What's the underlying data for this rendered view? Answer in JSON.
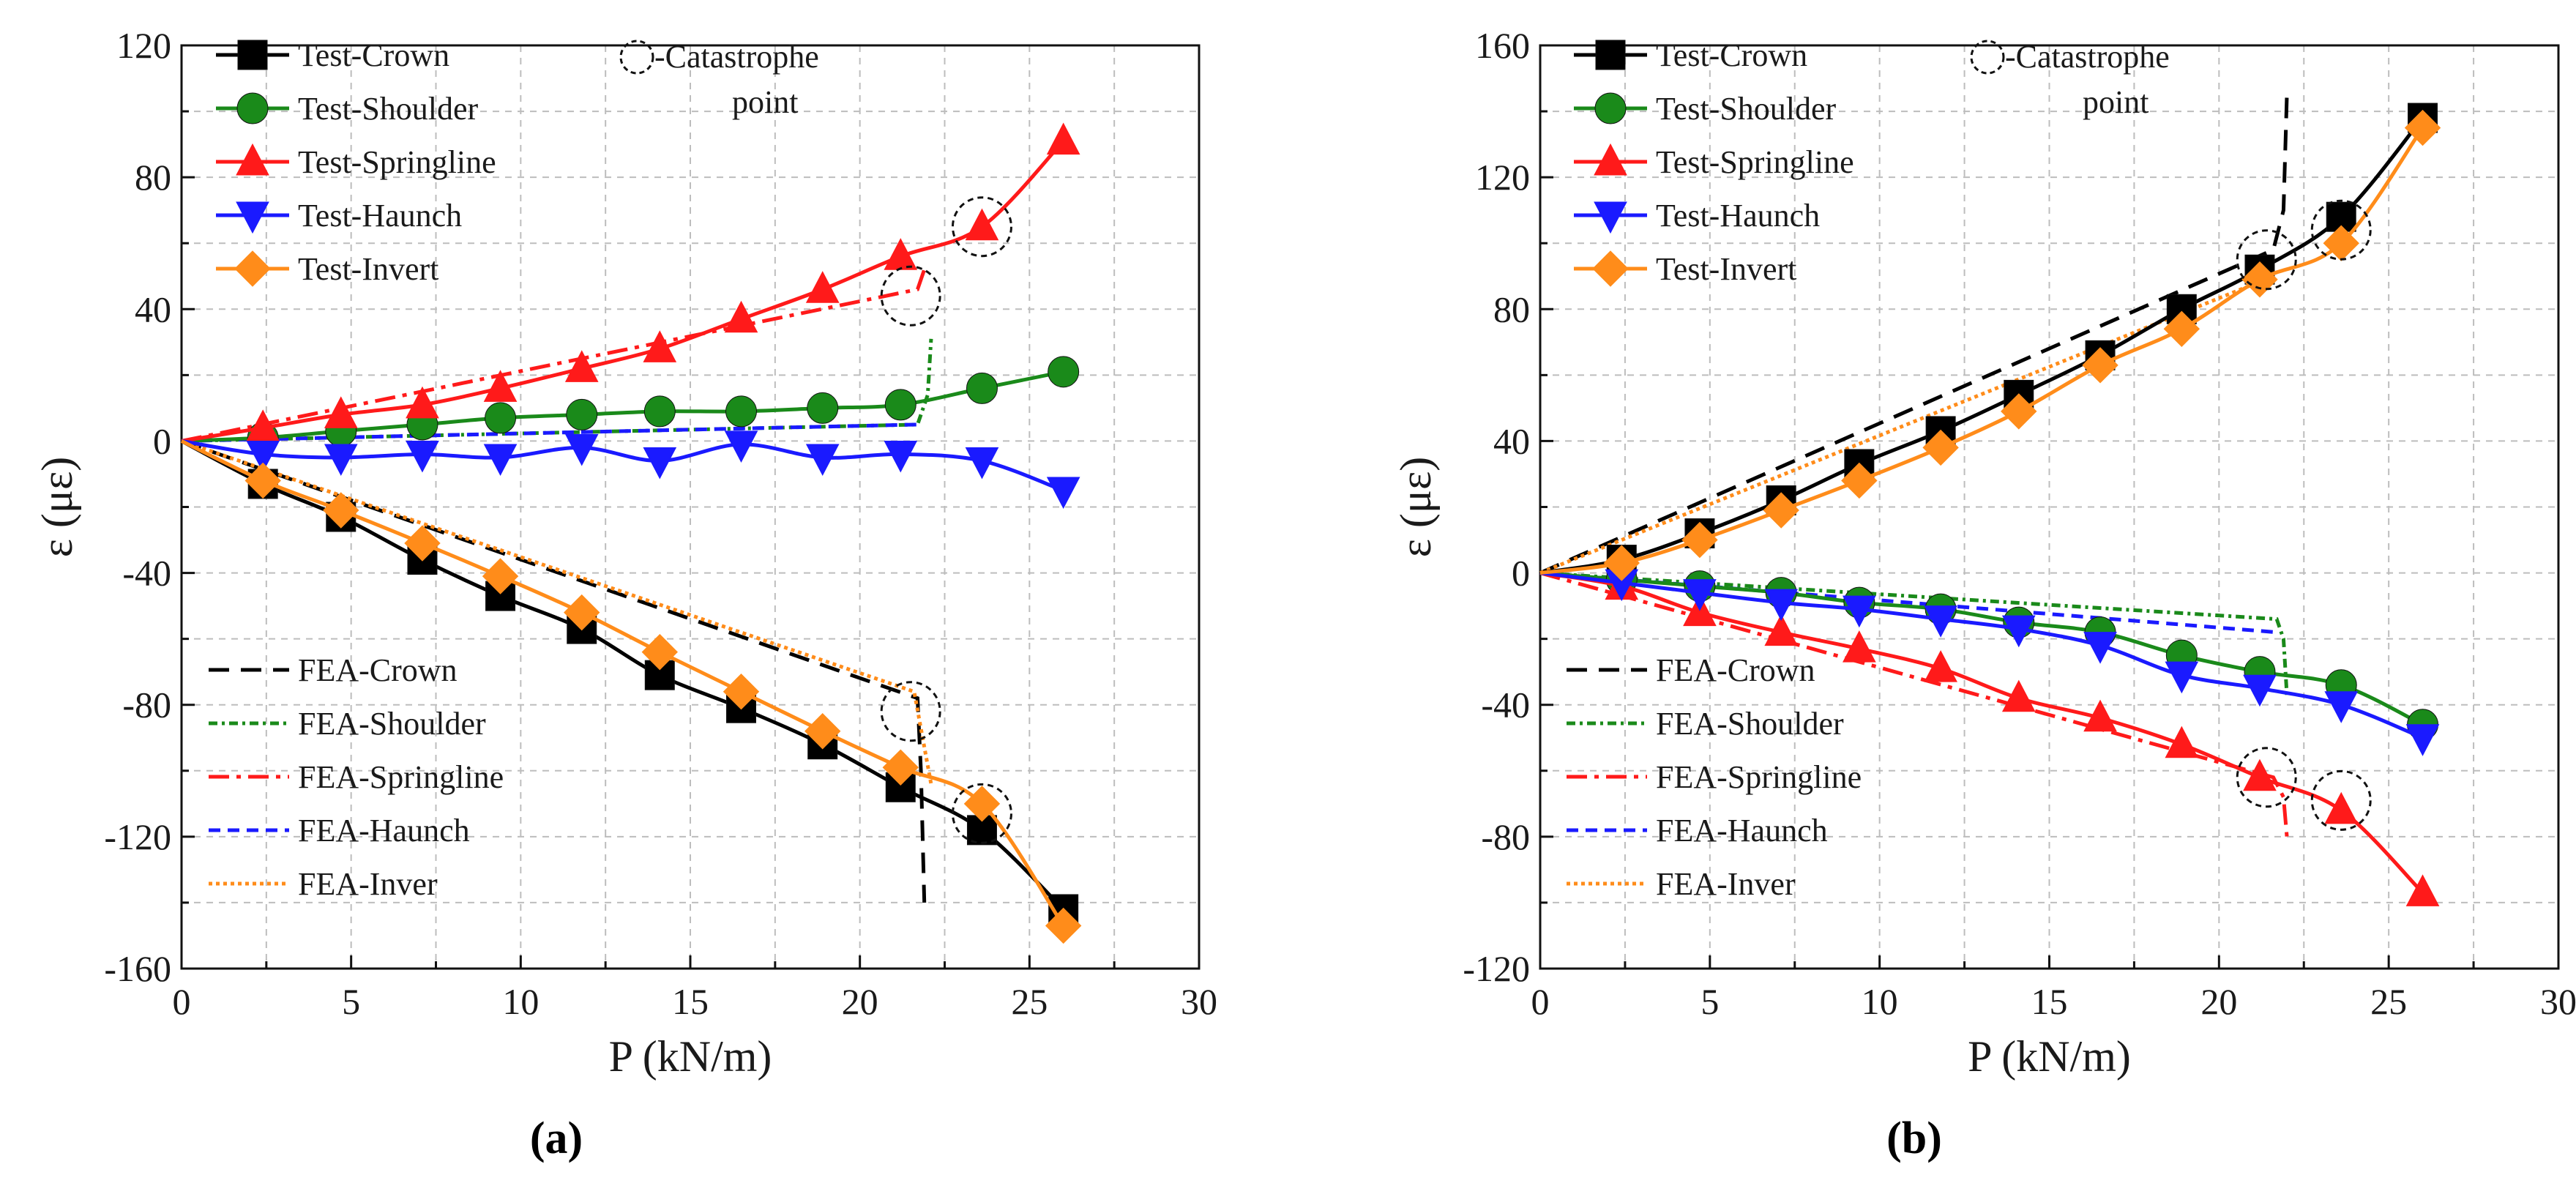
{
  "figure_labels": [
    "(a)",
    "(b)"
  ],
  "chart_data": [
    {
      "type": "line",
      "panel_label": "(a)",
      "title": "",
      "xlabel": "P (kN/m)",
      "ylabel": "ε (με)",
      "xlim": [
        0,
        30
      ],
      "ylim": [
        -160,
        120
      ],
      "xticks": [
        0,
        5,
        10,
        15,
        20,
        25,
        30
      ],
      "yticks": [
        -160,
        -120,
        -80,
        -40,
        0,
        40,
        80,
        120
      ],
      "grid": true,
      "annotation": {
        "text_line1": "-Catastrophe",
        "text_line2": "point",
        "x": 22.3,
        "y": 115
      },
      "catastrophe_points": [
        {
          "x": 23.6,
          "y": 65
        },
        {
          "x": 21.5,
          "y": 44
        },
        {
          "x": 21.5,
          "y": -82
        },
        {
          "x": 23.6,
          "y": -113
        }
      ],
      "series": [
        {
          "name": "Test-Crown",
          "kind": "test",
          "color": "#000000",
          "marker": "square",
          "x": [
            0,
            2.4,
            4.7,
            7.1,
            9.4,
            11.8,
            14.1,
            16.5,
            18.9,
            21.2,
            23.6,
            26
          ],
          "y": [
            0,
            -13,
            -23,
            -36,
            -47,
            -57,
            -71,
            -81,
            -92,
            -105,
            -118,
            -142
          ]
        },
        {
          "name": "Test-Shoulder",
          "kind": "test",
          "color": "#1a8a1a",
          "marker": "circle",
          "x": [
            0,
            2.4,
            4.7,
            7.1,
            9.4,
            11.8,
            14.1,
            16.5,
            18.9,
            21.2,
            23.6,
            26
          ],
          "y": [
            0,
            1,
            3,
            5,
            7,
            8,
            9,
            9,
            10,
            11,
            16,
            21
          ]
        },
        {
          "name": "Test-Springline",
          "kind": "test",
          "color": "#ff1a1a",
          "marker": "triangle-up",
          "x": [
            0,
            2.4,
            4.7,
            7.1,
            9.4,
            11.8,
            14.1,
            16.5,
            18.9,
            21.2,
            23.6,
            26
          ],
          "y": [
            0,
            4,
            8,
            11,
            16,
            22,
            28,
            37,
            46,
            56,
            65,
            91
          ]
        },
        {
          "name": "Test-Haunch",
          "kind": "test",
          "color": "#1a1aff",
          "marker": "triangle-down",
          "x": [
            0,
            2.4,
            4.7,
            7.1,
            9.4,
            11.8,
            14.1,
            16.5,
            18.9,
            21.2,
            23.6,
            26
          ],
          "y": [
            0,
            -4,
            -5,
            -4,
            -5,
            -2,
            -6,
            -1,
            -5,
            -4,
            -6,
            -15
          ]
        },
        {
          "name": "Test-Invert",
          "kind": "test",
          "color": "#ff8c1a",
          "marker": "diamond",
          "x": [
            0,
            2.4,
            4.7,
            7.1,
            9.4,
            11.8,
            14.1,
            16.5,
            18.9,
            21.2,
            23.6,
            26
          ],
          "y": [
            0,
            -12,
            -21,
            -31,
            -41,
            -52,
            -64,
            -76,
            -88,
            -99,
            -110,
            -147
          ]
        },
        {
          "name": "FEA-Crown",
          "kind": "fea",
          "color": "#000000",
          "dash": "28 16",
          "x": [
            0,
            21.7,
            21.8,
            21.9
          ],
          "y": [
            0,
            -78,
            -100,
            -140
          ]
        },
        {
          "name": "FEA-Shoulder",
          "kind": "fea",
          "color": "#1a8a1a",
          "dash": "12 6 4 6",
          "x": [
            0,
            21.7,
            22,
            22.1
          ],
          "y": [
            0,
            5,
            14,
            31
          ]
        },
        {
          "name": "FEA-Springline",
          "kind": "fea",
          "color": "#ff1a1a",
          "dash": "28 10 6 10",
          "x": [
            0,
            21.7,
            21.9
          ],
          "y": [
            0,
            46,
            52
          ]
        },
        {
          "name": "FEA-Haunch",
          "kind": "fea",
          "color": "#1a1aff",
          "dash": "16 10",
          "x": [
            0,
            21.7
          ],
          "y": [
            0,
            5
          ]
        },
        {
          "name": "FEA-Inver",
          "kind": "fea",
          "color": "#ff8c1a",
          "dash": "5 5",
          "x": [
            0,
            21.6,
            22.1
          ],
          "y": [
            0,
            -76,
            -104
          ]
        }
      ]
    },
    {
      "type": "line",
      "panel_label": "(b)",
      "title": "",
      "xlabel": "P (kN/m)",
      "ylabel": "ε (με)",
      "xlim": [
        0,
        30
      ],
      "ylim": [
        -120,
        160
      ],
      "xticks": [
        0,
        5,
        10,
        15,
        20,
        25,
        30
      ],
      "yticks": [
        -120,
        -80,
        -40,
        0,
        40,
        80,
        120,
        160
      ],
      "grid": true,
      "annotation": {
        "text_line1": "-Catastrophe",
        "text_line2": "point",
        "x": 21.5,
        "y": 155
      },
      "catastrophe_points": [
        {
          "x": 23.6,
          "y": 104
        },
        {
          "x": 21.4,
          "y": 95
        },
        {
          "x": 21.4,
          "y": -62
        },
        {
          "x": 23.6,
          "y": -69
        }
      ],
      "series": [
        {
          "name": "Test-Crown",
          "kind": "test",
          "color": "#000000",
          "marker": "square",
          "x": [
            0,
            2.4,
            4.7,
            7.1,
            9.4,
            11.8,
            14.1,
            16.5,
            18.9,
            21.2,
            23.6,
            26
          ],
          "y": [
            0,
            4,
            12,
            22,
            33,
            43,
            54,
            66,
            80,
            92,
            108,
            138
          ]
        },
        {
          "name": "Test-Shoulder",
          "kind": "test",
          "color": "#1a8a1a",
          "marker": "circle",
          "x": [
            0,
            2.4,
            4.7,
            7.1,
            9.4,
            11.8,
            14.1,
            16.5,
            18.9,
            21.2,
            23.6,
            26
          ],
          "y": [
            0,
            -2,
            -4,
            -6,
            -9,
            -11,
            -15,
            -18,
            -25,
            -30,
            -34,
            -46
          ]
        },
        {
          "name": "Test-Springline",
          "kind": "test",
          "color": "#ff1a1a",
          "marker": "triangle-up",
          "x": [
            0,
            2.4,
            4.7,
            7.1,
            9.4,
            11.8,
            14.1,
            16.5,
            18.9,
            21.2,
            23.6,
            26
          ],
          "y": [
            0,
            -4,
            -12,
            -18,
            -23,
            -29,
            -38,
            -44,
            -52,
            -62,
            -72,
            -97
          ]
        },
        {
          "name": "Test-Haunch",
          "kind": "test",
          "color": "#1a1aff",
          "marker": "triangle-down",
          "x": [
            0,
            2.4,
            4.7,
            7.1,
            9.4,
            11.8,
            14.1,
            16.5,
            18.9,
            21.2,
            23.6,
            26
          ],
          "y": [
            0,
            -3,
            -6,
            -9,
            -11,
            -14,
            -17,
            -22,
            -31,
            -35,
            -40,
            -50
          ]
        },
        {
          "name": "Test-Invert",
          "kind": "test",
          "color": "#ff8c1a",
          "marker": "diamond",
          "x": [
            0,
            2.4,
            4.7,
            7.1,
            9.4,
            11.8,
            14.1,
            16.5,
            18.9,
            21.2,
            23.6,
            26
          ],
          "y": [
            0,
            3,
            10,
            19,
            28,
            38,
            49,
            63,
            74,
            89,
            100,
            135
          ]
        },
        {
          "name": "FEA-Crown",
          "kind": "fea",
          "color": "#000000",
          "dash": "28 16",
          "x": [
            0,
            21.6,
            21.9,
            22
          ],
          "y": [
            0,
            98,
            110,
            145
          ]
        },
        {
          "name": "FEA-Shoulder",
          "kind": "fea",
          "color": "#1a8a1a",
          "dash": "12 6 4 6",
          "x": [
            0,
            21.7,
            21.9,
            22
          ],
          "y": [
            0,
            -14,
            -20,
            -37
          ]
        },
        {
          "name": "FEA-Springline",
          "kind": "fea",
          "color": "#ff1a1a",
          "dash": "28 10 6 10",
          "x": [
            0,
            21.6,
            21.9,
            22
          ],
          "y": [
            0,
            -62,
            -68,
            -80
          ]
        },
        {
          "name": "FEA-Haunch",
          "kind": "fea",
          "color": "#1a1aff",
          "dash": "16 10",
          "x": [
            0,
            21.7
          ],
          "y": [
            0,
            -18
          ]
        },
        {
          "name": "FEA-Inver",
          "kind": "fea",
          "color": "#ff8c1a",
          "dash": "5 5",
          "x": [
            0,
            21.6
          ],
          "y": [
            0,
            90
          ]
        }
      ]
    }
  ]
}
